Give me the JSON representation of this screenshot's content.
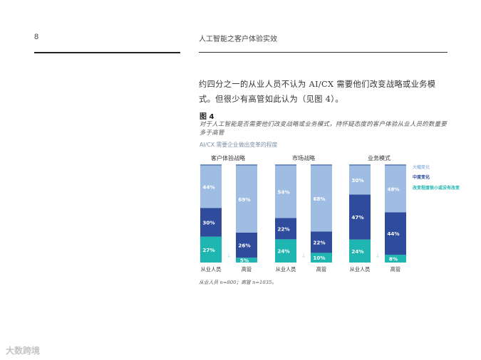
{
  "page": {
    "number": "8",
    "running_header": "人工智能之客户体验实效"
  },
  "body_text": "约四分之一的从业人员不认为 AI/CX 需要他们改变战略或业务模式。但很少有高管如此认为（见图 4）。",
  "figure": {
    "label": "图 4",
    "caption": "对于人工智能是否需要他们改变战略或业务模式，持怀疑态度的客户体验从业人员的数量要多于高管",
    "axis_title": "AI/CX 需要企业做出变革的程度",
    "footnote": "从业人员 n=800；高管 n=1035。"
  },
  "chart_data": {
    "type": "bar",
    "stacked": true,
    "percent": true,
    "groups": [
      "客户体验战略",
      "市场战略",
      "业务模式"
    ],
    "categories": [
      "从业人员",
      "高管"
    ],
    "series": [
      {
        "name": "改变程度很小或没有改变",
        "color": "#1fb5b0",
        "values": [
          [
            27,
            5
          ],
          [
            24,
            10
          ],
          [
            24,
            8
          ]
        ]
      },
      {
        "name": "中度变化",
        "color": "#2f4b9c",
        "values": [
          [
            30,
            26
          ],
          [
            22,
            22
          ],
          [
            47,
            44
          ]
        ]
      },
      {
        "name": "大幅变化",
        "color": "#9fbde2",
        "values": [
          [
            44,
            69
          ],
          [
            54,
            68
          ],
          [
            30,
            48
          ]
        ]
      }
    ],
    "labels_shown": [
      [
        [
          "27%",
          "30%",
          "44%"
        ],
        [
          "5%",
          "26%",
          "69%"
        ]
      ],
      [
        [
          "24%",
          "22%",
          "54%"
        ],
        [
          "10%",
          "22%",
          "68%"
        ]
      ],
      [
        [
          "24%",
          "47%",
          "30%"
        ],
        [
          "8%",
          "44%",
          "48%"
        ]
      ]
    ],
    "legend": [
      "大幅变化",
      "中度变化",
      "改变程度很小或没有改变"
    ],
    "legend_placement": "right",
    "ylim": [
      0,
      100
    ]
  },
  "watermark": "大数跨境"
}
